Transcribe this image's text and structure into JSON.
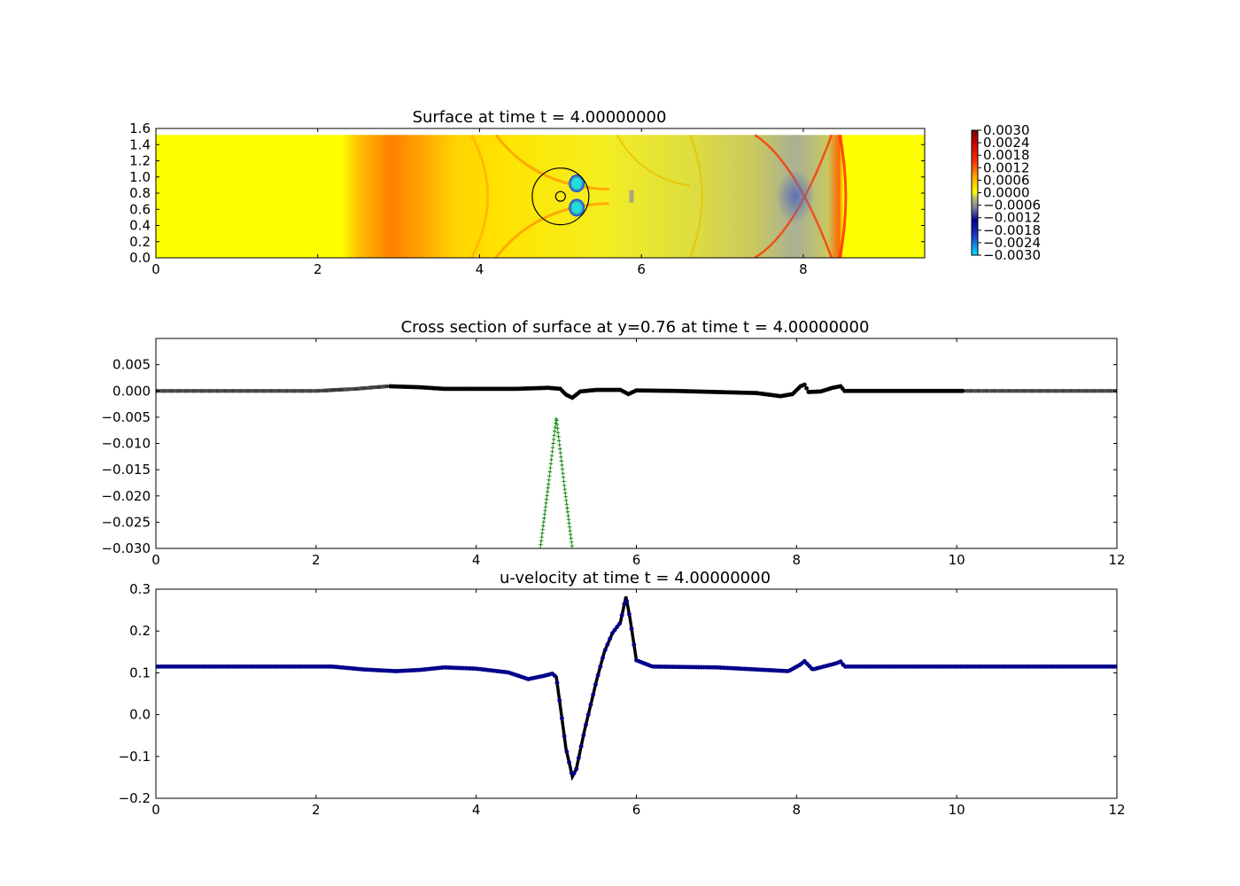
{
  "figure": {
    "background": "#ffffff"
  },
  "chart_data": [
    {
      "type": "heatmap",
      "title": "Surface at time t =     4.00000000",
      "x_ticks": [
        "0",
        "2",
        "4",
        "6",
        "8"
      ],
      "y_ticks": [
        "0.0",
        "0.2",
        "0.4",
        "0.6",
        "0.8",
        "1.0",
        "1.2",
        "1.4",
        "1.6"
      ],
      "xlim": [
        0,
        9.5
      ],
      "ylim": [
        0,
        1.6
      ],
      "domain_y_max": 1.52,
      "colorbar": {
        "colormap": "jet-like",
        "vmin": -0.003,
        "vmax": 0.003,
        "ticks": [
          "0.0030",
          "0.0024",
          "0.0018",
          "0.0012",
          "0.0006",
          "0.0000",
          "−0.0006",
          "−0.0012",
          "−0.0018",
          "−0.0024",
          "−0.0030"
        ]
      },
      "features": {
        "circle_center": [
          5.0,
          0.76
        ],
        "circle_radius": 0.35,
        "inner_circle_radius": 0.06,
        "low_spots": [
          [
            5.2,
            0.92
          ],
          [
            5.2,
            0.62
          ]
        ],
        "positive_band_x": [
          2.5,
          3.3
        ],
        "crest_x": 8.45,
        "trough_x": 7.9
      },
      "colors": {
        "positive": "#ff7f00",
        "neutral": "#ffff00",
        "negative": "#5a6fb5",
        "low": "#00e5ff"
      }
    },
    {
      "type": "line",
      "title": "Cross section of surface at y=0.76 at time t =     4.00000000",
      "x_ticks": [
        "0",
        "2",
        "4",
        "6",
        "8",
        "10",
        "12"
      ],
      "y_ticks": [
        "0.005",
        "0.000",
        "−0.005",
        "−0.010",
        "−0.015",
        "−0.020",
        "−0.025",
        "−0.030"
      ],
      "xlim": [
        0,
        12
      ],
      "ylim": [
        -0.03,
        0.01
      ],
      "series": [
        {
          "color": "#000000",
          "marker": "x",
          "points": [
            [
              0,
              0
            ],
            [
              2.0,
              0.0
            ],
            [
              2.5,
              0.0004
            ],
            [
              2.9,
              0.0009
            ],
            [
              3.3,
              0.0007
            ],
            [
              3.6,
              0.0004
            ],
            [
              4.0,
              0.0004
            ],
            [
              4.5,
              0.0004
            ],
            [
              4.9,
              0.0006
            ],
            [
              5.05,
              0.0004
            ],
            [
              5.12,
              -0.0007
            ],
            [
              5.2,
              -0.0013
            ],
            [
              5.3,
              -0.0001
            ],
            [
              5.5,
              0.0002
            ],
            [
              5.8,
              0.0002
            ],
            [
              5.9,
              -0.0006
            ],
            [
              6.0,
              0.0001
            ],
            [
              6.5,
              0.0
            ],
            [
              7.0,
              -0.0002
            ],
            [
              7.5,
              -0.0004
            ],
            [
              7.8,
              -0.001
            ],
            [
              7.95,
              -0.0006
            ],
            [
              8.05,
              0.0009
            ],
            [
              8.1,
              0.0012
            ],
            [
              8.15,
              -0.0002
            ],
            [
              8.3,
              -0.0001
            ],
            [
              8.45,
              0.0006
            ],
            [
              8.55,
              0.0009
            ],
            [
              8.6,
              0.0
            ],
            [
              9.0,
              0.0
            ],
            [
              10.1,
              0.0
            ],
            [
              12,
              0.0
            ]
          ]
        },
        {
          "color": "#008000",
          "marker": "+",
          "points": [
            [
              4.8,
              -0.03
            ],
            [
              4.9,
              -0.018
            ],
            [
              5.0,
              -0.0051
            ],
            [
              5.1,
              -0.018
            ],
            [
              5.2,
              -0.03
            ]
          ]
        }
      ]
    },
    {
      "type": "line",
      "title": "u-velocity at time t =     4.00000000",
      "x_ticks": [
        "0",
        "2",
        "4",
        "6",
        "8",
        "10",
        "12"
      ],
      "y_ticks": [
        "0.3",
        "0.2",
        "0.1",
        "0.0",
        "−0.1",
        "−0.2"
      ],
      "xlim": [
        0,
        12
      ],
      "ylim": [
        -0.2,
        0.3
      ],
      "series": [
        {
          "color": "#00008b",
          "marker": "o",
          "points": [
            [
              0,
              0.115
            ],
            [
              2.2,
              0.115
            ],
            [
              2.6,
              0.108
            ],
            [
              3.0,
              0.104
            ],
            [
              3.3,
              0.107
            ],
            [
              3.6,
              0.113
            ],
            [
              4.0,
              0.11
            ],
            [
              4.4,
              0.101
            ],
            [
              4.65,
              0.085
            ],
            [
              4.85,
              0.093
            ],
            [
              4.95,
              0.098
            ],
            [
              5.0,
              0.09
            ],
            [
              5.05,
              0.02
            ],
            [
              5.12,
              -0.08
            ],
            [
              5.2,
              -0.148
            ],
            [
              5.25,
              -0.13
            ],
            [
              5.35,
              -0.04
            ],
            [
              5.5,
              0.08
            ],
            [
              5.6,
              0.15
            ],
            [
              5.7,
              0.195
            ],
            [
              5.8,
              0.22
            ],
            [
              5.87,
              0.282
            ],
            [
              5.92,
              0.23
            ],
            [
              6.0,
              0.13
            ],
            [
              6.2,
              0.115
            ],
            [
              7.0,
              0.113
            ],
            [
              7.5,
              0.108
            ],
            [
              7.9,
              0.104
            ],
            [
              8.05,
              0.12
            ],
            [
              8.1,
              0.128
            ],
            [
              8.2,
              0.108
            ],
            [
              8.5,
              0.123
            ],
            [
              8.55,
              0.127
            ],
            [
              8.6,
              0.115
            ],
            [
              9.0,
              0.115
            ],
            [
              12,
              0.115
            ]
          ]
        }
      ]
    }
  ]
}
